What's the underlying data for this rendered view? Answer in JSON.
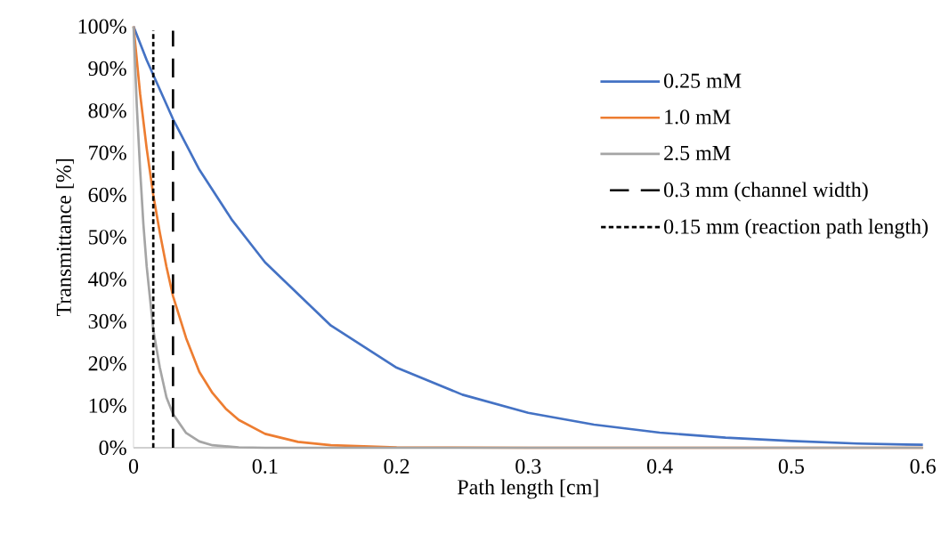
{
  "chart_data": {
    "type": "line",
    "xlabel": "Path length [cm]",
    "ylabel": "Transmittance [%]",
    "xlim": [
      0,
      0.6
    ],
    "xticks": [
      0,
      0.1,
      0.2,
      0.3,
      0.4,
      0.5,
      0.6
    ],
    "ylim": [
      0,
      100
    ],
    "yticks": [
      {
        "value": 0,
        "label": "0%"
      },
      {
        "value": 10,
        "label": "10%"
      },
      {
        "value": 20,
        "label": "20%"
      },
      {
        "value": 30,
        "label": "30%"
      },
      {
        "value": 40,
        "label": "40%"
      },
      {
        "value": 50,
        "label": "50%"
      },
      {
        "value": 60,
        "label": "60%"
      },
      {
        "value": 70,
        "label": "70%"
      },
      {
        "value": 80,
        "label": "80%"
      },
      {
        "value": 90,
        "label": "90%"
      },
      {
        "value": 100,
        "label": "100%"
      }
    ],
    "legend": "top right",
    "marker": "none",
    "line_style": "solid",
    "series": [
      {
        "name": "0.25 mM",
        "color": "#4472c4",
        "x": [
          0,
          0.01,
          0.02,
          0.03,
          0.05,
          0.075,
          0.1,
          0.15,
          0.2,
          0.25,
          0.3,
          0.35,
          0.4,
          0.45,
          0.5,
          0.55,
          0.6
        ],
        "values": [
          100,
          92,
          85,
          78,
          66,
          54,
          44,
          29,
          19,
          12.6,
          8.3,
          5.5,
          3.6,
          2.4,
          1.6,
          1.0,
          0.7
        ]
      },
      {
        "name": "1.0 mM",
        "color": "#ed7d31",
        "x": [
          0,
          0.005,
          0.01,
          0.015,
          0.02,
          0.025,
          0.03,
          0.04,
          0.05,
          0.06,
          0.07,
          0.08,
          0.1,
          0.125,
          0.15,
          0.2,
          0.3,
          0.6
        ],
        "values": [
          100,
          84,
          71,
          60,
          51,
          43,
          36,
          26,
          18,
          13,
          9.3,
          6.6,
          3.3,
          1.4,
          0.6,
          0.1,
          0,
          0
        ]
      },
      {
        "name": "2.5 mM",
        "color": "#a5a5a5",
        "x": [
          0,
          0.0025,
          0.005,
          0.0075,
          0.01,
          0.015,
          0.02,
          0.025,
          0.03,
          0.04,
          0.05,
          0.06,
          0.08,
          0.1,
          0.6
        ],
        "values": [
          100,
          81,
          66,
          53,
          43,
          28,
          19,
          12,
          8,
          3.5,
          1.5,
          0.6,
          0.1,
          0,
          0
        ]
      },
      {
        "name": "0.3 mm (channel width)",
        "color": "#000000",
        "line_style": "dashed",
        "x": [
          0.03,
          0.03
        ],
        "values": [
          0,
          99
        ]
      },
      {
        "name": "0.15 mm (reaction path length)",
        "color": "#000000",
        "line_style": "dotted",
        "x": [
          0.015,
          0.015
        ],
        "values": [
          0,
          99
        ]
      }
    ]
  }
}
